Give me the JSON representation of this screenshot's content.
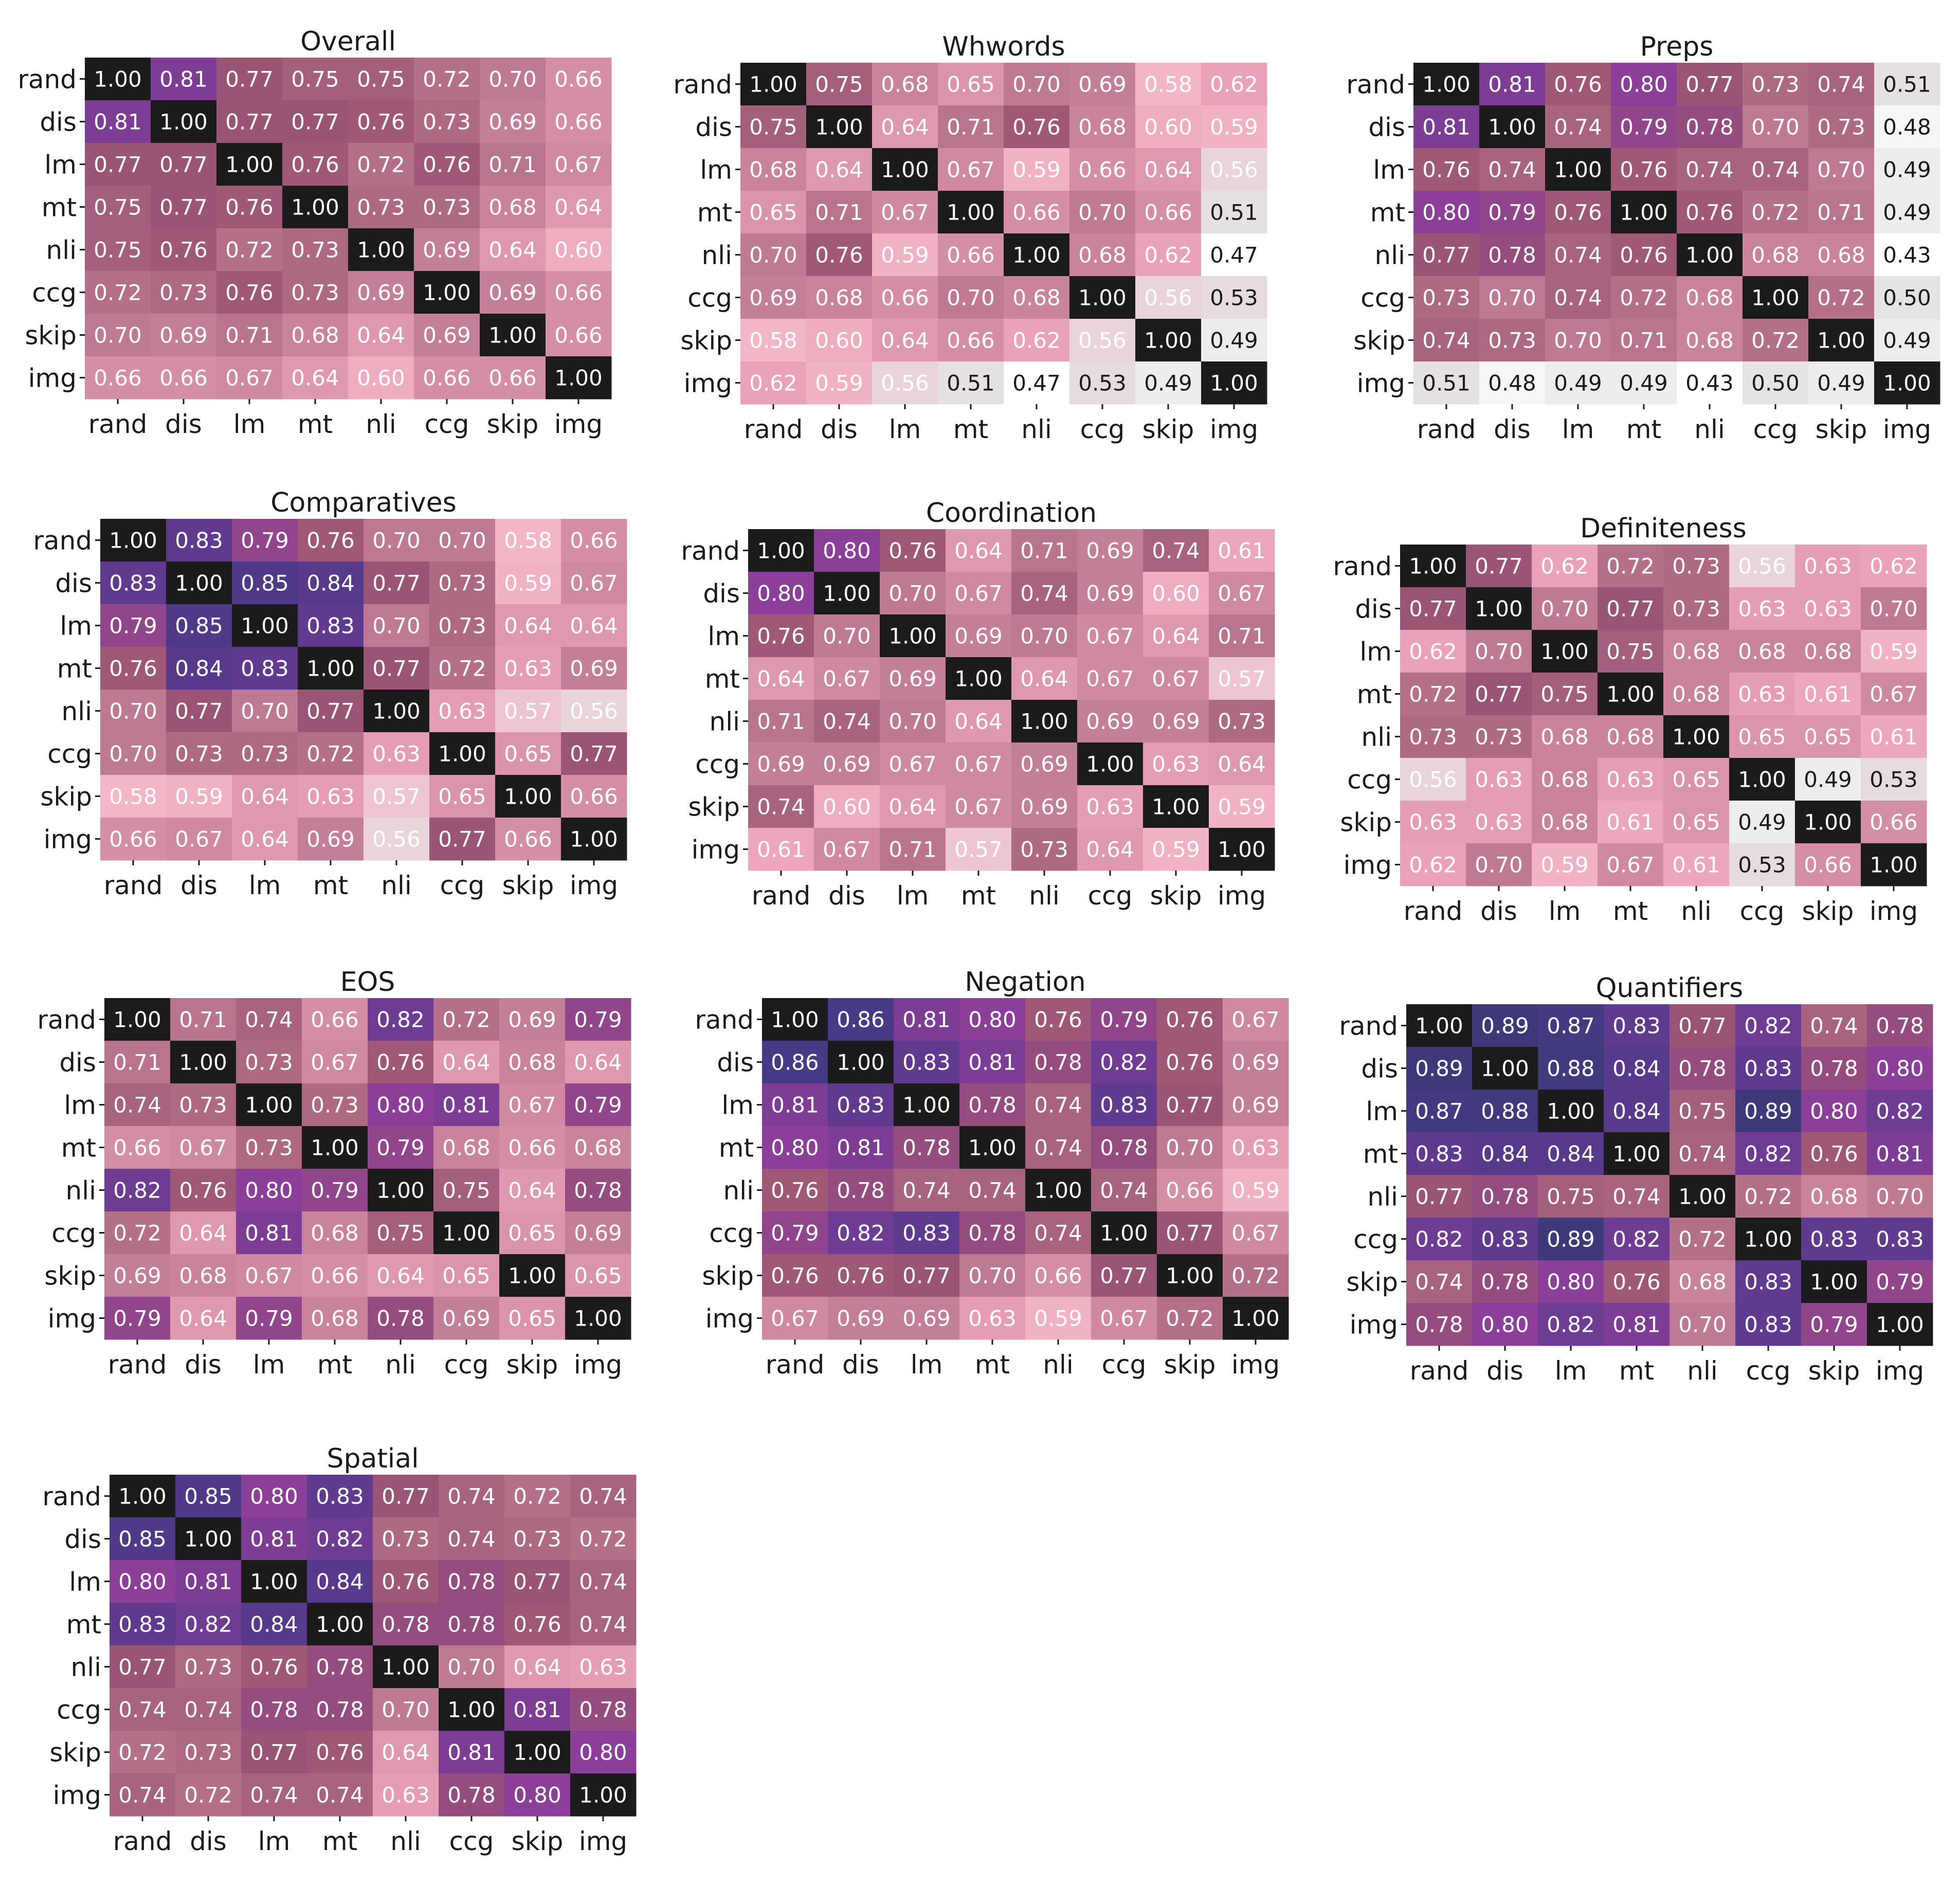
{
  "figure": {
    "background": "#ffffff"
  },
  "colors": {
    "scale": [
      [
        0.4,
        "#ffffff"
      ],
      [
        0.47,
        "#ffffff"
      ],
      [
        0.5,
        "#e4e4e4"
      ],
      [
        0.56,
        "#e8d4da"
      ],
      [
        0.58,
        "#f3b7c8"
      ],
      [
        0.62,
        "#eaa2b8"
      ],
      [
        0.66,
        "#d48fa6"
      ],
      [
        0.7,
        "#bf7a93"
      ],
      [
        0.74,
        "#a8647e"
      ],
      [
        0.77,
        "#9a5474"
      ],
      [
        0.8,
        "#8c3f98"
      ],
      [
        0.83,
        "#5f3a8f"
      ],
      [
        0.86,
        "#473a86"
      ],
      [
        0.9,
        "#3b3a76"
      ]
    ],
    "diagonal": "#1b1b1b",
    "text_dark": "#1a1a1a",
    "text_light": "#ffffff"
  },
  "chart_data": [
    {
      "type": "heatmap",
      "title": "Overall",
      "x_labels": [
        "rand",
        "dis",
        "lm",
        "mt",
        "nli",
        "ccg",
        "skip",
        "img"
      ],
      "y_labels": [
        "rand",
        "dis",
        "lm",
        "mt",
        "nli",
        "ccg",
        "skip",
        "img"
      ],
      "values": [
        [
          1.0,
          0.81,
          0.77,
          0.75,
          0.75,
          0.72,
          0.7,
          0.66
        ],
        [
          0.81,
          1.0,
          0.77,
          0.77,
          0.76,
          0.73,
          0.69,
          0.66
        ],
        [
          0.77,
          0.77,
          1.0,
          0.76,
          0.72,
          0.76,
          0.71,
          0.67
        ],
        [
          0.75,
          0.77,
          0.76,
          1.0,
          0.73,
          0.73,
          0.68,
          0.64
        ],
        [
          0.75,
          0.76,
          0.72,
          0.73,
          1.0,
          0.69,
          0.64,
          0.6
        ],
        [
          0.72,
          0.73,
          0.76,
          0.73,
          0.69,
          1.0,
          0.69,
          0.66
        ],
        [
          0.7,
          0.69,
          0.71,
          0.68,
          0.64,
          0.69,
          1.0,
          0.66
        ],
        [
          0.66,
          0.66,
          0.67,
          0.64,
          0.6,
          0.66,
          0.66,
          1.0
        ]
      ]
    },
    {
      "type": "heatmap",
      "title": "Whwords",
      "x_labels": [
        "rand",
        "dis",
        "lm",
        "mt",
        "nli",
        "ccg",
        "skip",
        "img"
      ],
      "y_labels": [
        "rand",
        "dis",
        "lm",
        "mt",
        "nli",
        "ccg",
        "skip",
        "img"
      ],
      "values": [
        [
          1.0,
          0.75,
          0.68,
          0.65,
          0.7,
          0.69,
          0.58,
          0.62
        ],
        [
          0.75,
          1.0,
          0.64,
          0.71,
          0.76,
          0.68,
          0.6,
          0.59
        ],
        [
          0.68,
          0.64,
          1.0,
          0.67,
          0.59,
          0.66,
          0.64,
          0.56
        ],
        [
          0.65,
          0.71,
          0.67,
          1.0,
          0.66,
          0.7,
          0.66,
          0.51
        ],
        [
          0.7,
          0.76,
          0.59,
          0.66,
          1.0,
          0.68,
          0.62,
          0.47
        ],
        [
          0.69,
          0.68,
          0.66,
          0.7,
          0.68,
          1.0,
          0.56,
          0.53
        ],
        [
          0.58,
          0.6,
          0.64,
          0.66,
          0.62,
          0.56,
          1.0,
          0.49
        ],
        [
          0.62,
          0.59,
          0.56,
          0.51,
          0.47,
          0.53,
          0.49,
          1.0
        ]
      ]
    },
    {
      "type": "heatmap",
      "title": "Preps",
      "x_labels": [
        "rand",
        "dis",
        "lm",
        "mt",
        "nli",
        "ccg",
        "skip",
        "img"
      ],
      "y_labels": [
        "rand",
        "dis",
        "lm",
        "mt",
        "nli",
        "ccg",
        "skip",
        "img"
      ],
      "values": [
        [
          1.0,
          0.81,
          0.76,
          0.8,
          0.77,
          0.73,
          0.74,
          0.51
        ],
        [
          0.81,
          1.0,
          0.74,
          0.79,
          0.78,
          0.7,
          0.73,
          0.48
        ],
        [
          0.76,
          0.74,
          1.0,
          0.76,
          0.74,
          0.74,
          0.7,
          0.49
        ],
        [
          0.8,
          0.79,
          0.76,
          1.0,
          0.76,
          0.72,
          0.71,
          0.49
        ],
        [
          0.77,
          0.78,
          0.74,
          0.76,
          1.0,
          0.68,
          0.68,
          0.43
        ],
        [
          0.73,
          0.7,
          0.74,
          0.72,
          0.68,
          1.0,
          0.72,
          0.5
        ],
        [
          0.74,
          0.73,
          0.7,
          0.71,
          0.68,
          0.72,
          1.0,
          0.49
        ],
        [
          0.51,
          0.48,
          0.49,
          0.49,
          0.43,
          0.5,
          0.49,
          1.0
        ]
      ]
    },
    {
      "type": "heatmap",
      "title": "Comparatives",
      "x_labels": [
        "rand",
        "dis",
        "lm",
        "mt",
        "nli",
        "ccg",
        "skip",
        "img"
      ],
      "y_labels": [
        "rand",
        "dis",
        "lm",
        "mt",
        "nli",
        "ccg",
        "skip",
        "img"
      ],
      "values": [
        [
          1.0,
          0.83,
          0.79,
          0.76,
          0.7,
          0.7,
          0.58,
          0.66
        ],
        [
          0.83,
          1.0,
          0.85,
          0.84,
          0.77,
          0.73,
          0.59,
          0.67
        ],
        [
          0.79,
          0.85,
          1.0,
          0.83,
          0.7,
          0.73,
          0.64,
          0.64
        ],
        [
          0.76,
          0.84,
          0.83,
          1.0,
          0.77,
          0.72,
          0.63,
          0.69
        ],
        [
          0.7,
          0.77,
          0.7,
          0.77,
          1.0,
          0.63,
          0.57,
          0.56
        ],
        [
          0.7,
          0.73,
          0.73,
          0.72,
          0.63,
          1.0,
          0.65,
          0.77
        ],
        [
          0.58,
          0.59,
          0.64,
          0.63,
          0.57,
          0.65,
          1.0,
          0.66
        ],
        [
          0.66,
          0.67,
          0.64,
          0.69,
          0.56,
          0.77,
          0.66,
          1.0
        ]
      ]
    },
    {
      "type": "heatmap",
      "title": "Coordination",
      "x_labels": [
        "rand",
        "dis",
        "lm",
        "mt",
        "nli",
        "ccg",
        "skip",
        "img"
      ],
      "y_labels": [
        "rand",
        "dis",
        "lm",
        "mt",
        "nli",
        "ccg",
        "skip",
        "img"
      ],
      "values": [
        [
          1.0,
          0.8,
          0.76,
          0.64,
          0.71,
          0.69,
          0.74,
          0.61
        ],
        [
          0.8,
          1.0,
          0.7,
          0.67,
          0.74,
          0.69,
          0.6,
          0.67
        ],
        [
          0.76,
          0.7,
          1.0,
          0.69,
          0.7,
          0.67,
          0.64,
          0.71
        ],
        [
          0.64,
          0.67,
          0.69,
          1.0,
          0.64,
          0.67,
          0.67,
          0.57
        ],
        [
          0.71,
          0.74,
          0.7,
          0.64,
          1.0,
          0.69,
          0.69,
          0.73
        ],
        [
          0.69,
          0.69,
          0.67,
          0.67,
          0.69,
          1.0,
          0.63,
          0.64
        ],
        [
          0.74,
          0.6,
          0.64,
          0.67,
          0.69,
          0.63,
          1.0,
          0.59
        ],
        [
          0.61,
          0.67,
          0.71,
          0.57,
          0.73,
          0.64,
          0.59,
          1.0
        ]
      ]
    },
    {
      "type": "heatmap",
      "title": "Definiteness",
      "x_labels": [
        "rand",
        "dis",
        "lm",
        "mt",
        "nli",
        "ccg",
        "skip",
        "img"
      ],
      "y_labels": [
        "rand",
        "dis",
        "lm",
        "mt",
        "nli",
        "ccg",
        "skip",
        "img"
      ],
      "values": [
        [
          1.0,
          0.77,
          0.62,
          0.72,
          0.73,
          0.56,
          0.63,
          0.62
        ],
        [
          0.77,
          1.0,
          0.7,
          0.77,
          0.73,
          0.63,
          0.63,
          0.7
        ],
        [
          0.62,
          0.7,
          1.0,
          0.75,
          0.68,
          0.68,
          0.68,
          0.59
        ],
        [
          0.72,
          0.77,
          0.75,
          1.0,
          0.68,
          0.63,
          0.61,
          0.67
        ],
        [
          0.73,
          0.73,
          0.68,
          0.68,
          1.0,
          0.65,
          0.65,
          0.61
        ],
        [
          0.56,
          0.63,
          0.68,
          0.63,
          0.65,
          1.0,
          0.49,
          0.53
        ],
        [
          0.63,
          0.63,
          0.68,
          0.61,
          0.65,
          0.49,
          1.0,
          0.66
        ],
        [
          0.62,
          0.7,
          0.59,
          0.67,
          0.61,
          0.53,
          0.66,
          1.0
        ]
      ]
    },
    {
      "type": "heatmap",
      "title": "EOS",
      "x_labels": [
        "rand",
        "dis",
        "lm",
        "mt",
        "nli",
        "ccg",
        "skip",
        "img"
      ],
      "y_labels": [
        "rand",
        "dis",
        "lm",
        "mt",
        "nli",
        "ccg",
        "skip",
        "img"
      ],
      "values": [
        [
          1.0,
          0.71,
          0.74,
          0.66,
          0.82,
          0.72,
          0.69,
          0.79
        ],
        [
          0.71,
          1.0,
          0.73,
          0.67,
          0.76,
          0.64,
          0.68,
          0.64
        ],
        [
          0.74,
          0.73,
          1.0,
          0.73,
          0.8,
          0.81,
          0.67,
          0.79
        ],
        [
          0.66,
          0.67,
          0.73,
          1.0,
          0.79,
          0.68,
          0.66,
          0.68
        ],
        [
          0.82,
          0.76,
          0.8,
          0.79,
          1.0,
          0.75,
          0.64,
          0.78
        ],
        [
          0.72,
          0.64,
          0.81,
          0.68,
          0.75,
          1.0,
          0.65,
          0.69
        ],
        [
          0.69,
          0.68,
          0.67,
          0.66,
          0.64,
          0.65,
          1.0,
          0.65
        ],
        [
          0.79,
          0.64,
          0.79,
          0.68,
          0.78,
          0.69,
          0.65,
          1.0
        ]
      ]
    },
    {
      "type": "heatmap",
      "title": "Negation",
      "x_labels": [
        "rand",
        "dis",
        "lm",
        "mt",
        "nli",
        "ccg",
        "skip",
        "img"
      ],
      "y_labels": [
        "rand",
        "dis",
        "lm",
        "mt",
        "nli",
        "ccg",
        "skip",
        "img"
      ],
      "values": [
        [
          1.0,
          0.86,
          0.81,
          0.8,
          0.76,
          0.79,
          0.76,
          0.67
        ],
        [
          0.86,
          1.0,
          0.83,
          0.81,
          0.78,
          0.82,
          0.76,
          0.69
        ],
        [
          0.81,
          0.83,
          1.0,
          0.78,
          0.74,
          0.83,
          0.77,
          0.69
        ],
        [
          0.8,
          0.81,
          0.78,
          1.0,
          0.74,
          0.78,
          0.7,
          0.63
        ],
        [
          0.76,
          0.78,
          0.74,
          0.74,
          1.0,
          0.74,
          0.66,
          0.59
        ],
        [
          0.79,
          0.82,
          0.83,
          0.78,
          0.74,
          1.0,
          0.77,
          0.67
        ],
        [
          0.76,
          0.76,
          0.77,
          0.7,
          0.66,
          0.77,
          1.0,
          0.72
        ],
        [
          0.67,
          0.69,
          0.69,
          0.63,
          0.59,
          0.67,
          0.72,
          1.0
        ]
      ]
    },
    {
      "type": "heatmap",
      "title": "Quantifiers",
      "x_labels": [
        "rand",
        "dis",
        "lm",
        "mt",
        "nli",
        "ccg",
        "skip",
        "img"
      ],
      "y_labels": [
        "rand",
        "dis",
        "lm",
        "mt",
        "nli",
        "ccg",
        "skip",
        "img"
      ],
      "values": [
        [
          1.0,
          0.89,
          0.87,
          0.83,
          0.77,
          0.82,
          0.74,
          0.78
        ],
        [
          0.89,
          1.0,
          0.88,
          0.84,
          0.78,
          0.83,
          0.78,
          0.8
        ],
        [
          0.87,
          0.88,
          1.0,
          0.84,
          0.75,
          0.89,
          0.8,
          0.82
        ],
        [
          0.83,
          0.84,
          0.84,
          1.0,
          0.74,
          0.82,
          0.76,
          0.81
        ],
        [
          0.77,
          0.78,
          0.75,
          0.74,
          1.0,
          0.72,
          0.68,
          0.7
        ],
        [
          0.82,
          0.83,
          0.89,
          0.82,
          0.72,
          1.0,
          0.83,
          0.83
        ],
        [
          0.74,
          0.78,
          0.8,
          0.76,
          0.68,
          0.83,
          1.0,
          0.79
        ],
        [
          0.78,
          0.8,
          0.82,
          0.81,
          0.7,
          0.83,
          0.79,
          1.0
        ]
      ]
    },
    {
      "type": "heatmap",
      "title": "Spatial",
      "x_labels": [
        "rand",
        "dis",
        "lm",
        "mt",
        "nli",
        "ccg",
        "skip",
        "img"
      ],
      "y_labels": [
        "rand",
        "dis",
        "lm",
        "mt",
        "nli",
        "ccg",
        "skip",
        "img"
      ],
      "values": [
        [
          1.0,
          0.85,
          0.8,
          0.83,
          0.77,
          0.74,
          0.72,
          0.74
        ],
        [
          0.85,
          1.0,
          0.81,
          0.82,
          0.73,
          0.74,
          0.73,
          0.72
        ],
        [
          0.8,
          0.81,
          1.0,
          0.84,
          0.76,
          0.78,
          0.77,
          0.74
        ],
        [
          0.83,
          0.82,
          0.84,
          1.0,
          0.78,
          0.78,
          0.76,
          0.74
        ],
        [
          0.77,
          0.73,
          0.76,
          0.78,
          1.0,
          0.7,
          0.64,
          0.63
        ],
        [
          0.74,
          0.74,
          0.78,
          0.78,
          0.7,
          1.0,
          0.81,
          0.78
        ],
        [
          0.72,
          0.73,
          0.77,
          0.76,
          0.64,
          0.81,
          1.0,
          0.8
        ],
        [
          0.74,
          0.72,
          0.74,
          0.74,
          0.63,
          0.78,
          0.8,
          1.0
        ]
      ]
    }
  ]
}
